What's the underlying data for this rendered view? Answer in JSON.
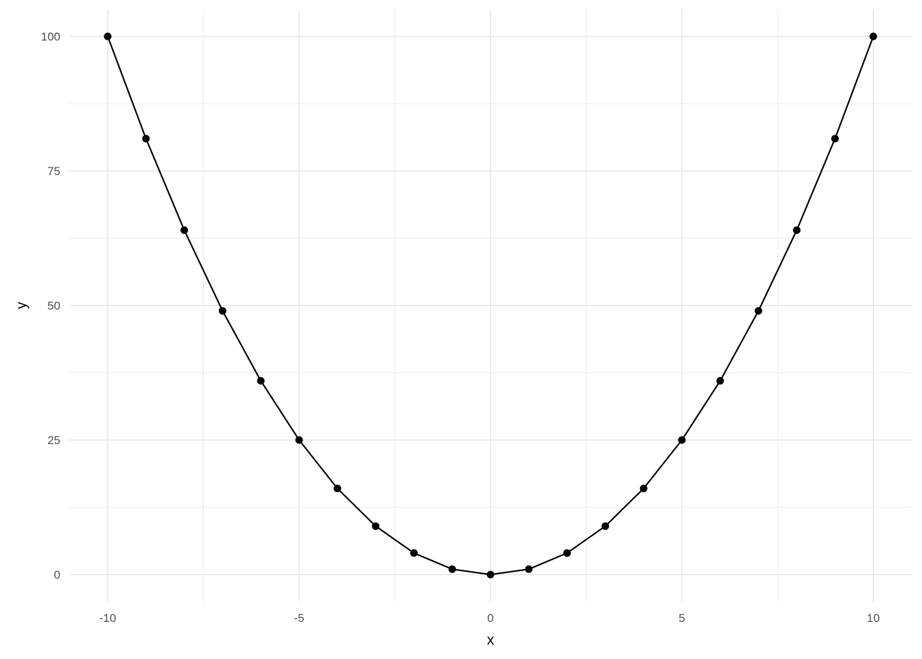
{
  "chart_data": {
    "type": "line",
    "title": "",
    "xlabel": "x",
    "ylabel": "y",
    "xlim": [
      -11,
      11.1
    ],
    "ylim": [
      -5,
      105
    ],
    "grid": true,
    "x_ticks": [
      -10,
      -5,
      0,
      5,
      10
    ],
    "y_ticks": [
      0,
      25,
      50,
      75,
      100
    ],
    "x_tick_labels": [
      "-10",
      "-5",
      "0",
      "5",
      "10"
    ],
    "y_tick_labels": [
      "0",
      "25",
      "50",
      "75",
      "100"
    ],
    "x": [
      -10,
      -9,
      -8,
      -7,
      -6,
      -5,
      -4,
      -3,
      -2,
      -1,
      0,
      1,
      2,
      3,
      4,
      5,
      6,
      7,
      8,
      9,
      10
    ],
    "y": [
      100,
      81,
      64,
      49,
      36,
      25,
      16,
      9,
      4,
      1,
      0,
      1,
      4,
      9,
      16,
      25,
      36,
      49,
      64,
      81,
      100
    ],
    "markers": true,
    "line_color": "#000000",
    "grid_color": "#ebebeb"
  }
}
